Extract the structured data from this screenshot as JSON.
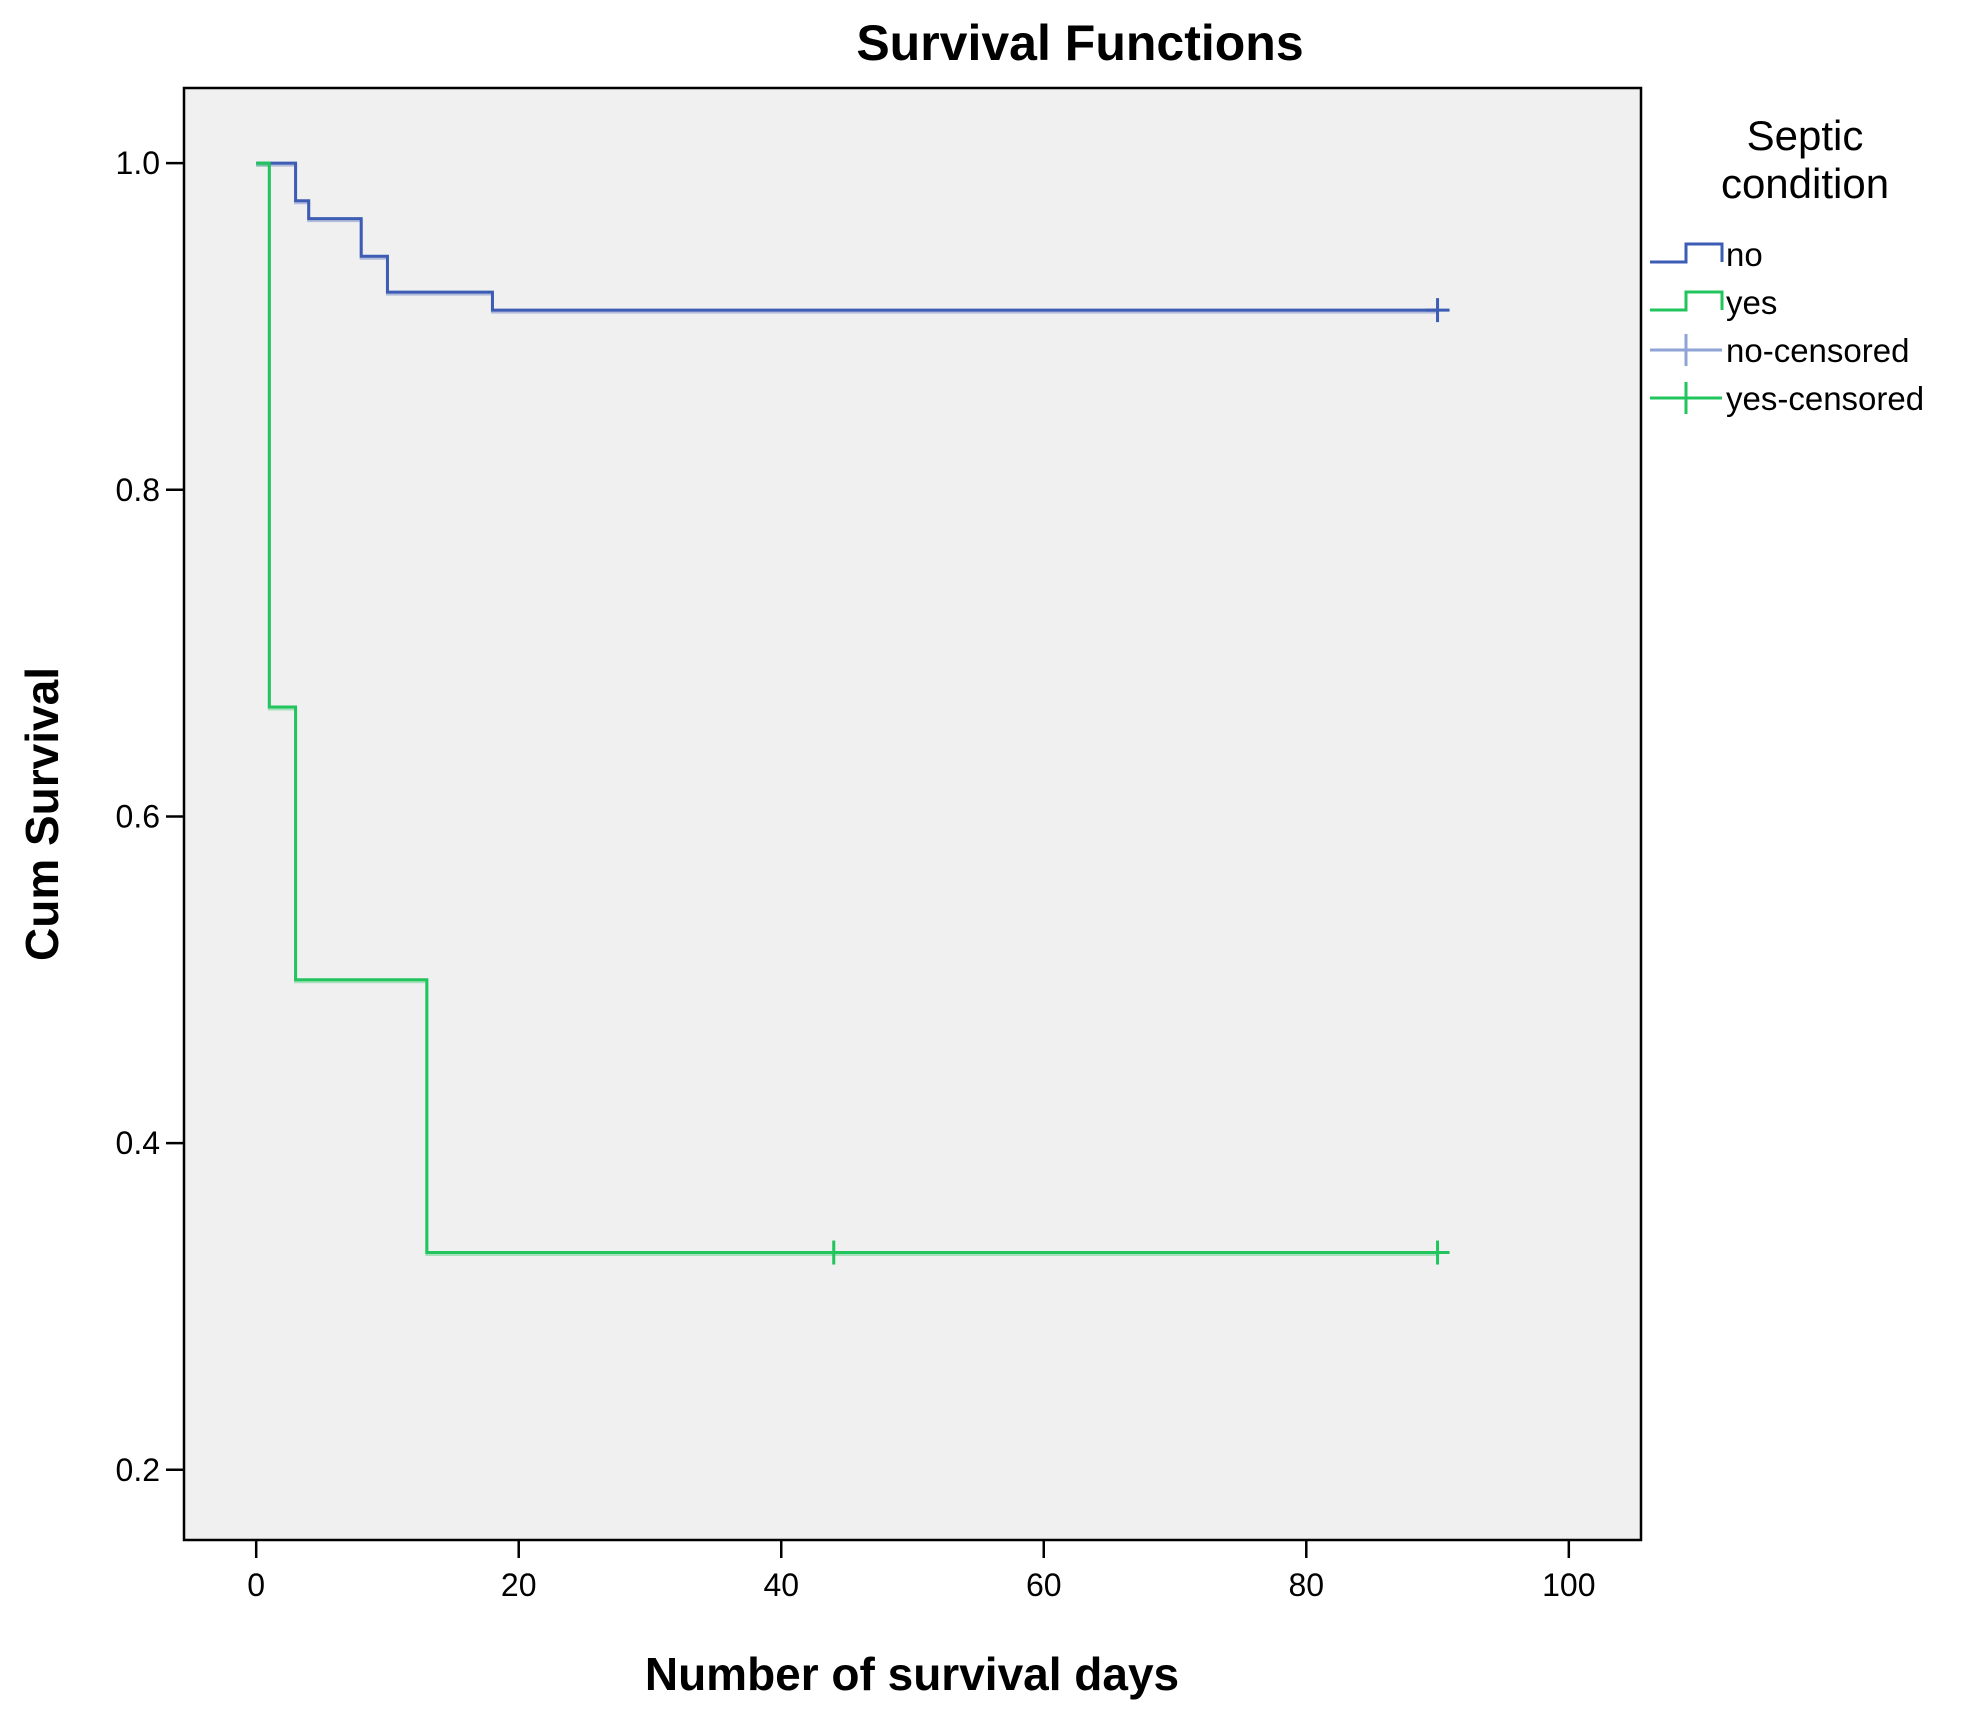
{
  "chart_data": {
    "type": "line",
    "title": "Survival Functions",
    "xlabel": "Number of survival days",
    "ylabel": "Cum Survival",
    "xlim": [
      -5.5,
      105.5
    ],
    "ylim": [
      0.157,
      1.046
    ],
    "xticks": [
      0,
      20,
      40,
      60,
      80,
      100
    ],
    "yticks": [
      0.2,
      0.4,
      0.6,
      0.8,
      1.0
    ],
    "xtick_labels": [
      "0",
      "20",
      "40",
      "60",
      "80",
      "100"
    ],
    "ytick_labels": [
      "0.2",
      "0.4",
      "0.6",
      "0.8",
      "1.0"
    ],
    "grid": false,
    "plot_background": "#f0f0f0",
    "legend_position": "right",
    "legend": {
      "title_lines": [
        "Septic",
        "condition"
      ],
      "entries": [
        {
          "label": "no",
          "kind": "step",
          "color": "#3d5db5"
        },
        {
          "label": "yes",
          "kind": "step",
          "color": "#22c45e"
        },
        {
          "label": "no-censored",
          "kind": "censor",
          "color": "#8fa3d6"
        },
        {
          "label": "yes-censored",
          "kind": "censor",
          "color": "#22c45e"
        }
      ]
    },
    "series": [
      {
        "name": "no",
        "color": "#3d5db5",
        "steps": [
          [
            0,
            1.0
          ],
          [
            3,
            0.977
          ],
          [
            4,
            0.966
          ],
          [
            8,
            0.943
          ],
          [
            10,
            0.921
          ],
          [
            18,
            0.91
          ]
        ],
        "end_x": 90,
        "censored": [
          [
            90,
            0.91
          ]
        ]
      },
      {
        "name": "yes",
        "color": "#22c45e",
        "steps": [
          [
            0,
            1.0
          ],
          [
            1,
            0.667
          ],
          [
            3,
            0.5
          ],
          [
            13,
            0.333
          ]
        ],
        "end_x": 90,
        "censored": [
          [
            44,
            0.333
          ],
          [
            90,
            0.333
          ]
        ]
      }
    ]
  }
}
